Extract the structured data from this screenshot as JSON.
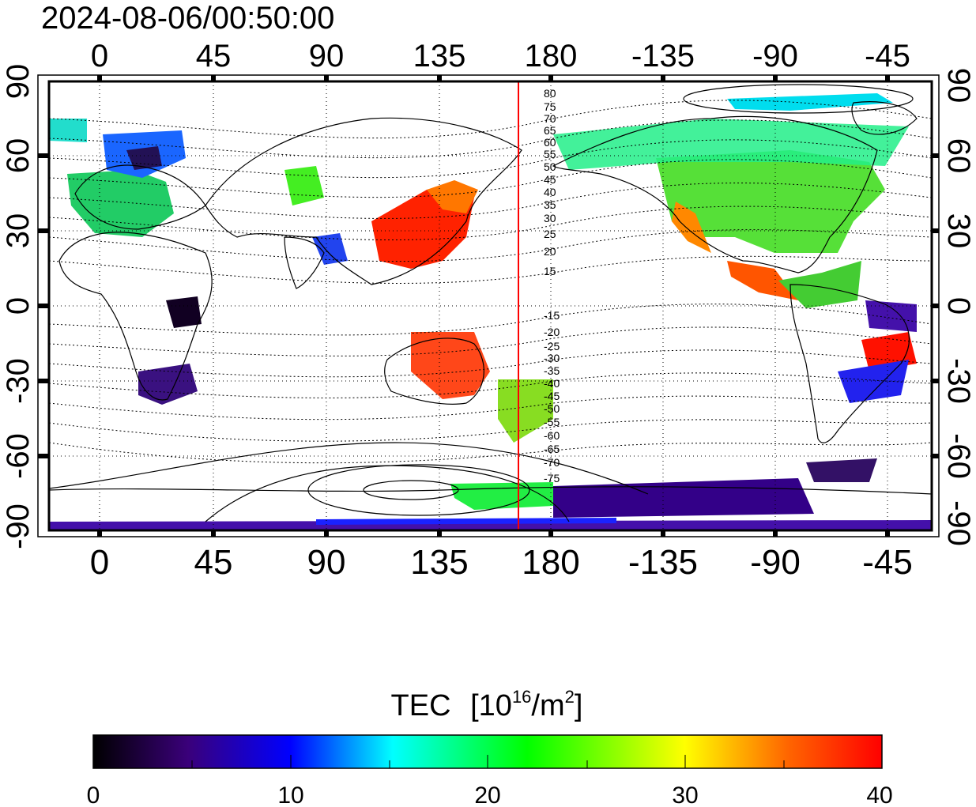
{
  "timestamp": "2024-08-06/00:50:00",
  "map": {
    "lon_ticks": [
      "0",
      "45",
      "90",
      "135",
      "180",
      "-135",
      "-90",
      "-45"
    ],
    "lat_ticks_left": [
      "90",
      "60",
      "30",
      "0",
      "-30",
      "-60",
      "-90"
    ],
    "lat_ticks_right": [
      "90",
      "60",
      "30",
      "0",
      "-30",
      "-60",
      "-90"
    ],
    "lon_range": [
      -20,
      340
    ],
    "lat_range": [
      -90,
      90
    ],
    "meridian_marker_lon": 168,
    "meridian_marker_color": "#ff0000",
    "contour_labels_north": [
      "80",
      "75",
      "70",
      "65",
      "60",
      "55",
      "50",
      "45",
      "40",
      "35",
      "30",
      "25",
      "20",
      "15"
    ],
    "contour_labels_south": [
      "-15",
      "-20",
      "-25",
      "-30",
      "-35",
      "-40",
      "-45",
      "-50",
      "-55",
      "-60",
      "-65",
      "-70",
      "-75"
    ]
  },
  "colorbar": {
    "title": "TEC",
    "unit_base": "[10",
    "unit_exp": "16",
    "unit_mid": "/m",
    "unit_exp2": "2",
    "unit_close": "]",
    "ticks": [
      "0",
      "10",
      "20",
      "30",
      "40"
    ],
    "range": [
      0,
      40
    ],
    "stops": [
      "#000000",
      "#3a007a",
      "#0000ff",
      "#00ffff",
      "#00ff00",
      "#ffff00",
      "#ff6600",
      "#ff0000"
    ]
  }
}
